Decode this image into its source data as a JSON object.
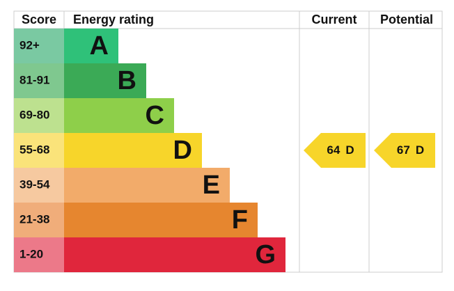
{
  "header": {
    "score": "Score",
    "energy_rating": "Energy rating",
    "current": "Current",
    "potential": "Potential"
  },
  "bands": [
    {
      "score": "92+",
      "letter": "A",
      "color": "#2fc179",
      "score_color": "#7ac9a2"
    },
    {
      "score": "81-91",
      "letter": "B",
      "color": "#3baa56",
      "score_color": "#7fc88f"
    },
    {
      "score": "69-80",
      "letter": "C",
      "color": "#8ecf4a",
      "score_color": "#bde18f"
    },
    {
      "score": "55-68",
      "letter": "D",
      "color": "#f7d52a",
      "score_color": "#fae37a"
    },
    {
      "score": "39-54",
      "letter": "E",
      "color": "#f2ab6a",
      "score_color": "#f6c9a0"
    },
    {
      "score": "21-38",
      "letter": "F",
      "color": "#e6862f",
      "score_color": "#f0ad7a"
    },
    {
      "score": "1-20",
      "letter": "G",
      "color": "#e0263c",
      "score_color": "#ec7989"
    }
  ],
  "current": {
    "value": 64,
    "letter": "D"
  },
  "potential": {
    "value": 67,
    "letter": "D"
  }
}
